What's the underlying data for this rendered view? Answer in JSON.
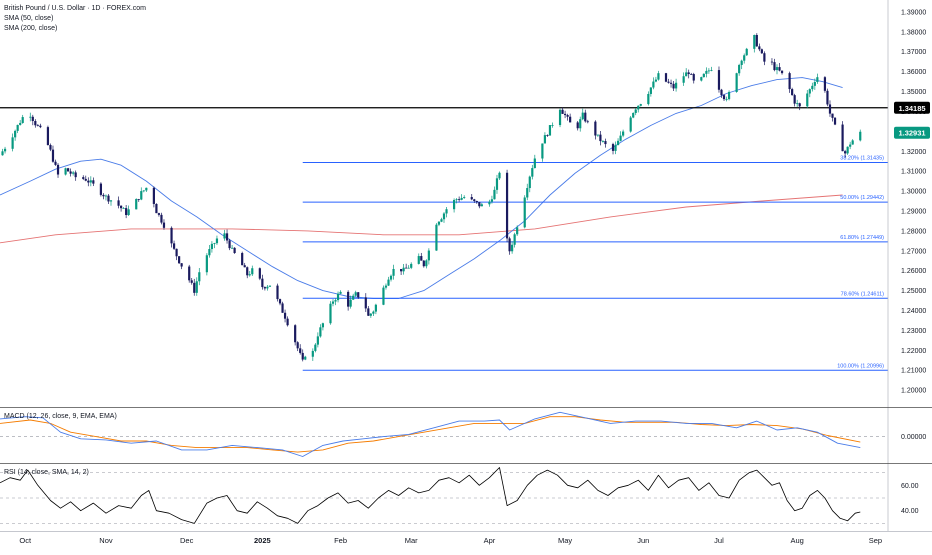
{
  "header": {
    "title": "British Pound / U.S. Dollar · 1D · FOREX.com",
    "sma50": "SMA (50, close)",
    "sma200": "SMA (200, close)",
    "macd": "MACD (12, 26, close, 9, EMA, EMA)",
    "rsi": "RSI (14, close, SMA, 14, 2)"
  },
  "colors": {
    "up": "#089981",
    "down": "#1a1a5e",
    "sma50": "#4a7ce8",
    "sma200": "#e57373",
    "fib": "#2962ff",
    "resistance": "#000000",
    "macd_line": "#4a7ce8",
    "signal_line": "#f57c00",
    "rsi_line": "#000000"
  },
  "chart_data": [
    {
      "type": "candlestick",
      "title": "British Pound / U.S. Dollar · 1D · FOREX.com",
      "x_ticks": [
        "Oct",
        "Nov",
        "Dec",
        "2025",
        "Feb",
        "Mar",
        "Apr",
        "May",
        "Jun",
        "Jul",
        "Aug",
        "Sep"
      ],
      "y_ticks": [
        1.2,
        1.21,
        1.22,
        1.23,
        1.24,
        1.25,
        1.26,
        1.27,
        1.28,
        1.29,
        1.3,
        1.31,
        1.32,
        1.33,
        1.34,
        1.35,
        1.36,
        1.37,
        1.38,
        1.39
      ],
      "y_tick_labels": [
        "1.20000",
        "1.21000",
        "1.22000",
        "1.23000",
        "1.24000",
        "1.25000",
        "1.26000",
        "1.27000",
        "1.28000",
        "1.29000",
        "1.30000",
        "1.31000",
        "1.32000",
        "1.33000",
        "1.34000",
        "1.35000",
        "1.36000",
        "1.37000",
        "1.38000",
        "1.39000"
      ],
      "ylim": [
        1.192,
        1.396
      ],
      "x_range_days": [
        -12,
        340
      ],
      "path_points": [
        [
          -12,
          1.318
        ],
        [
          -8,
          1.326
        ],
        [
          -4,
          1.335
        ],
        [
          -1,
          1.341
        ],
        [
          2,
          1.334
        ],
        [
          5,
          1.329
        ],
        [
          8,
          1.32
        ],
        [
          11,
          1.308
        ],
        [
          14,
          1.311
        ],
        [
          18,
          1.307
        ],
        [
          22,
          1.306
        ],
        [
          26,
          1.302
        ],
        [
          30,
          1.297
        ],
        [
          34,
          1.294
        ],
        [
          38,
          1.289
        ],
        [
          41,
          1.293
        ],
        [
          44,
          1.299
        ],
        [
          47,
          1.303
        ],
        [
          50,
          1.29
        ],
        [
          53,
          1.283
        ],
        [
          56,
          1.273
        ],
        [
          59,
          1.265
        ],
        [
          62,
          1.258
        ],
        [
          65,
          1.25
        ],
        [
          68,
          1.264
        ],
        [
          71,
          1.27
        ],
        [
          74,
          1.276
        ],
        [
          77,
          1.278
        ],
        [
          80,
          1.27
        ],
        [
          83,
          1.265
        ],
        [
          86,
          1.258
        ],
        [
          89,
          1.261
        ],
        [
          92,
          1.252
        ],
        [
          95,
          1.253
        ],
        [
          98,
          1.245
        ],
        [
          101,
          1.237
        ],
        [
          104,
          1.228
        ],
        [
          106,
          1.221
        ],
        [
          108,
          1.214
        ],
        [
          110,
          1.222
        ],
        [
          112,
          1.219
        ],
        [
          114,
          1.228
        ],
        [
          117,
          1.236
        ],
        [
          120,
          1.245
        ],
        [
          123,
          1.249
        ],
        [
          126,
          1.243
        ],
        [
          129,
          1.248
        ],
        [
          132,
          1.246
        ],
        [
          134,
          1.237
        ],
        [
          136,
          1.24
        ],
        [
          139,
          1.248
        ],
        [
          142,
          1.257
        ],
        [
          145,
          1.262
        ],
        [
          148,
          1.26
        ],
        [
          151,
          1.263
        ],
        [
          154,
          1.266
        ],
        [
          156,
          1.263
        ],
        [
          158,
          1.27
        ],
        [
          160,
          1.283
        ],
        [
          163,
          1.287
        ],
        [
          166,
          1.293
        ],
        [
          169,
          1.296
        ],
        [
          172,
          1.297
        ],
        [
          175,
          1.295
        ],
        [
          178,
          1.293
        ],
        [
          181,
          1.292
        ],
        [
          184,
          1.3
        ],
        [
          186,
          1.31
        ],
        [
          188,
          1.28
        ],
        [
          190,
          1.27
        ],
        [
          192,
          1.278
        ],
        [
          195,
          1.293
        ],
        [
          198,
          1.308
        ],
        [
          201,
          1.321
        ],
        [
          204,
          1.327
        ],
        [
          207,
          1.334
        ],
        [
          210,
          1.342
        ],
        [
          213,
          1.336
        ],
        [
          216,
          1.33
        ],
        [
          219,
          1.338
        ],
        [
          222,
          1.332
        ],
        [
          225,
          1.327
        ],
        [
          228,
          1.323
        ],
        [
          231,
          1.32
        ],
        [
          234,
          1.327
        ],
        [
          237,
          1.336
        ],
        [
          240,
          1.342
        ],
        [
          243,
          1.346
        ],
        [
          246,
          1.352
        ],
        [
          249,
          1.358
        ],
        [
          252,
          1.355
        ],
        [
          255,
          1.352
        ],
        [
          258,
          1.357
        ],
        [
          261,
          1.36
        ],
        [
          264,
          1.352
        ],
        [
          267,
          1.358
        ],
        [
          270,
          1.362
        ],
        [
          273,
          1.352
        ],
        [
          276,
          1.345
        ],
        [
          279,
          1.357
        ],
        [
          282,
          1.367
        ],
        [
          285,
          1.372
        ],
        [
          287,
          1.377
        ],
        [
          289,
          1.371
        ],
        [
          291,
          1.365
        ],
        [
          293,
          1.366
        ],
        [
          295,
          1.362
        ],
        [
          297,
          1.36
        ],
        [
          299,
          1.357
        ],
        [
          301,
          1.351
        ],
        [
          303,
          1.345
        ],
        [
          305,
          1.342
        ],
        [
          307,
          1.347
        ],
        [
          309,
          1.351
        ],
        [
          311,
          1.356
        ],
        [
          313,
          1.359
        ],
        [
          315,
          1.35
        ],
        [
          317,
          1.339
        ],
        [
          319,
          1.332
        ],
        [
          321,
          1.324
        ],
        [
          323,
          1.319
        ],
        [
          325,
          1.324
        ],
        [
          327,
          1.327
        ],
        [
          329,
          1.329
        ]
      ],
      "sma50": [
        [
          -12,
          1.298
        ],
        [
          0,
          1.305
        ],
        [
          10,
          1.311
        ],
        [
          20,
          1.315
        ],
        [
          28,
          1.316
        ],
        [
          36,
          1.313
        ],
        [
          46,
          1.305
        ],
        [
          56,
          1.295
        ],
        [
          66,
          1.287
        ],
        [
          76,
          1.278
        ],
        [
          86,
          1.27
        ],
        [
          96,
          1.262
        ],
        [
          106,
          1.255
        ],
        [
          116,
          1.25
        ],
        [
          126,
          1.247
        ],
        [
          136,
          1.246
        ],
        [
          146,
          1.246
        ],
        [
          156,
          1.25
        ],
        [
          166,
          1.258
        ],
        [
          176,
          1.266
        ],
        [
          186,
          1.275
        ],
        [
          196,
          1.285
        ],
        [
          206,
          1.298
        ],
        [
          216,
          1.309
        ],
        [
          226,
          1.318
        ],
        [
          236,
          1.326
        ],
        [
          246,
          1.333
        ],
        [
          256,
          1.339
        ],
        [
          266,
          1.343
        ],
        [
          276,
          1.349
        ],
        [
          286,
          1.353
        ],
        [
          296,
          1.356
        ],
        [
          306,
          1.357
        ],
        [
          314,
          1.355
        ],
        [
          322,
          1.352
        ]
      ],
      "sma200": [
        [
          -12,
          1.274
        ],
        [
          10,
          1.278
        ],
        [
          40,
          1.281
        ],
        [
          80,
          1.281
        ],
        [
          110,
          1.28
        ],
        [
          140,
          1.278
        ],
        [
          170,
          1.278
        ],
        [
          200,
          1.281
        ],
        [
          230,
          1.287
        ],
        [
          260,
          1.292
        ],
        [
          290,
          1.295
        ],
        [
          322,
          1.298
        ]
      ],
      "resistance": {
        "value": 1.34185,
        "label": "1.34185"
      },
      "last_price": {
        "value": 1.32931,
        "label": "1.32931"
      },
      "fib_levels": [
        {
          "value": 1.31435,
          "label": "38.20% (1.31435)"
        },
        {
          "value": 1.29442,
          "label": "50.00% (1.29442)"
        },
        {
          "value": 1.27449,
          "label": "61.80% (1.27449)"
        },
        {
          "value": 1.24611,
          "label": "78.60% (1.24611)"
        },
        {
          "value": 1.20996,
          "label": "100.00% (1.20996)"
        }
      ]
    },
    {
      "type": "line",
      "title": "MACD (12, 26, close, 9, EMA, EMA)",
      "y_ticks": [
        0.0
      ],
      "y_tick_labels": [
        "0.00000"
      ],
      "ylim": [
        -0.0115,
        0.0125
      ],
      "macd": [
        [
          -12,
          0.008
        ],
        [
          -2,
          0.009
        ],
        [
          5,
          0.0085
        ],
        [
          12,
          0.002
        ],
        [
          20,
          -0.001
        ],
        [
          30,
          -0.0015
        ],
        [
          40,
          -0.003
        ],
        [
          50,
          -0.002
        ],
        [
          60,
          -0.006
        ],
        [
          70,
          -0.006
        ],
        [
          80,
          -0.004
        ],
        [
          90,
          -0.005
        ],
        [
          100,
          -0.006
        ],
        [
          108,
          -0.009
        ],
        [
          116,
          -0.004
        ],
        [
          124,
          -0.002
        ],
        [
          132,
          -0.001
        ],
        [
          140,
          0.0
        ],
        [
          150,
          0.001
        ],
        [
          160,
          0.004
        ],
        [
          170,
          0.007
        ],
        [
          180,
          0.007
        ],
        [
          186,
          0.0075
        ],
        [
          190,
          0.003
        ],
        [
          200,
          0.008
        ],
        [
          210,
          0.011
        ],
        [
          220,
          0.0085
        ],
        [
          230,
          0.006
        ],
        [
          240,
          0.007
        ],
        [
          250,
          0.007
        ],
        [
          260,
          0.006
        ],
        [
          270,
          0.006
        ],
        [
          280,
          0.004
        ],
        [
          288,
          0.007
        ],
        [
          296,
          0.003
        ],
        [
          304,
          0.004
        ],
        [
          312,
          0.002
        ],
        [
          320,
          -0.003
        ],
        [
          329,
          -0.005
        ]
      ],
      "signal": [
        [
          -12,
          0.006
        ],
        [
          0,
          0.0075
        ],
        [
          8,
          0.006
        ],
        [
          16,
          0.002
        ],
        [
          26,
          0.0
        ],
        [
          36,
          -0.002
        ],
        [
          46,
          -0.002
        ],
        [
          56,
          -0.004
        ],
        [
          66,
          -0.005
        ],
        [
          76,
          -0.005
        ],
        [
          86,
          -0.005
        ],
        [
          96,
          -0.006
        ],
        [
          106,
          -0.007
        ],
        [
          116,
          -0.006
        ],
        [
          126,
          -0.003
        ],
        [
          136,
          -0.002
        ],
        [
          146,
          0.0
        ],
        [
          156,
          0.002
        ],
        [
          166,
          0.004
        ],
        [
          176,
          0.006
        ],
        [
          186,
          0.006
        ],
        [
          196,
          0.006
        ],
        [
          206,
          0.009
        ],
        [
          216,
          0.009
        ],
        [
          226,
          0.0075
        ],
        [
          236,
          0.0065
        ],
        [
          246,
          0.0065
        ],
        [
          256,
          0.0065
        ],
        [
          266,
          0.0055
        ],
        [
          276,
          0.005
        ],
        [
          286,
          0.0055
        ],
        [
          296,
          0.005
        ],
        [
          306,
          0.0035
        ],
        [
          316,
          0.0005
        ],
        [
          329,
          -0.0025
        ]
      ]
    },
    {
      "type": "line",
      "title": "RSI (14, close, SMA, 14, 2)",
      "y_ticks": [
        40,
        60
      ],
      "y_tick_labels": [
        "40.00",
        "60.00"
      ],
      "ylim": [
        24,
        76
      ],
      "levels": [
        70,
        50,
        30
      ],
      "rsi": [
        [
          -12,
          62
        ],
        [
          -8,
          66
        ],
        [
          -4,
          64
        ],
        [
          -1,
          72
        ],
        [
          3,
          60
        ],
        [
          8,
          48
        ],
        [
          12,
          42
        ],
        [
          16,
          47
        ],
        [
          20,
          40
        ],
        [
          25,
          46
        ],
        [
          30,
          38
        ],
        [
          35,
          44
        ],
        [
          40,
          42
        ],
        [
          44,
          52
        ],
        [
          47,
          56
        ],
        [
          50,
          40
        ],
        [
          55,
          38
        ],
        [
          60,
          33
        ],
        [
          65,
          30
        ],
        [
          70,
          46
        ],
        [
          74,
          50
        ],
        [
          78,
          52
        ],
        [
          82,
          40
        ],
        [
          86,
          38
        ],
        [
          90,
          47
        ],
        [
          94,
          42
        ],
        [
          98,
          36
        ],
        [
          102,
          34
        ],
        [
          106,
          30
        ],
        [
          110,
          40
        ],
        [
          114,
          44
        ],
        [
          118,
          50
        ],
        [
          122,
          54
        ],
        [
          126,
          46
        ],
        [
          130,
          48
        ],
        [
          134,
          42
        ],
        [
          138,
          50
        ],
        [
          142,
          56
        ],
        [
          146,
          52
        ],
        [
          150,
          58
        ],
        [
          154,
          54
        ],
        [
          158,
          56
        ],
        [
          162,
          64
        ],
        [
          166,
          66
        ],
        [
          170,
          62
        ],
        [
          174,
          68
        ],
        [
          178,
          60
        ],
        [
          182,
          66
        ],
        [
          186,
          74
        ],
        [
          189,
          44
        ],
        [
          193,
          48
        ],
        [
          197,
          60
        ],
        [
          201,
          68
        ],
        [
          205,
          72
        ],
        [
          209,
          68
        ],
        [
          213,
          60
        ],
        [
          217,
          58
        ],
        [
          221,
          64
        ],
        [
          225,
          56
        ],
        [
          229,
          52
        ],
        [
          233,
          58
        ],
        [
          237,
          60
        ],
        [
          241,
          64
        ],
        [
          245,
          56
        ],
        [
          249,
          68
        ],
        [
          253,
          58
        ],
        [
          257,
          64
        ],
        [
          261,
          66
        ],
        [
          265,
          56
        ],
        [
          269,
          62
        ],
        [
          273,
          52
        ],
        [
          277,
          50
        ],
        [
          281,
          64
        ],
        [
          285,
          70
        ],
        [
          288,
          72
        ],
        [
          291,
          66
        ],
        [
          294,
          60
        ],
        [
          297,
          62
        ],
        [
          300,
          48
        ],
        [
          303,
          40
        ],
        [
          306,
          42
        ],
        [
          309,
          52
        ],
        [
          312,
          56
        ],
        [
          315,
          50
        ],
        [
          318,
          40
        ],
        [
          321,
          34
        ],
        [
          324,
          32
        ],
        [
          327,
          38
        ],
        [
          329,
          39
        ]
      ]
    }
  ]
}
